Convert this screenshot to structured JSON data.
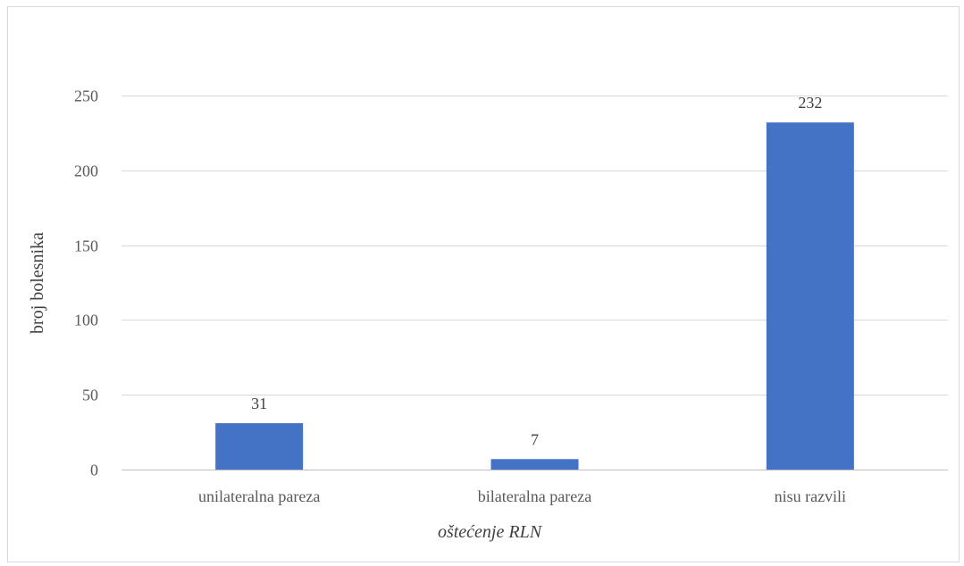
{
  "chart_data": {
    "type": "bar",
    "categories": [
      "unilateralna pareza",
      "bilateralna pareza",
      "nisu razvili"
    ],
    "values": [
      31,
      7,
      232
    ],
    "xlabel": "oštećenje RLN",
    "ylabel": "broj bolesnika",
    "ylim": [
      0,
      250
    ],
    "yticks": [
      0,
      50,
      100,
      150,
      200,
      250
    ],
    "grid": true,
    "legend": "none",
    "data_labels": true,
    "colors": {
      "bar": "#4472c4",
      "grid": "#d9d9d9",
      "axis": "#bfbfbf"
    }
  }
}
